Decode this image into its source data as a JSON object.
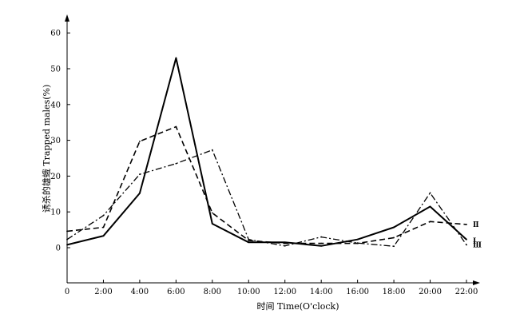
{
  "chart_data": {
    "type": "line",
    "xlabel": "时间 Time(O'clock)",
    "ylabel": "诱杀的雄蛾 Trapped males(%)",
    "x": [
      "0",
      "2:00",
      "4:00",
      "6:00",
      "8:00",
      "10:00",
      "12:00",
      "14:00",
      "16:00",
      "18:00",
      "20:00",
      "22:00"
    ],
    "xlim": [
      0,
      22
    ],
    "ylim": [
      -10,
      64
    ],
    "yticks": [
      0,
      10,
      20,
      30,
      40,
      50,
      60
    ],
    "grid": false,
    "series": [
      {
        "name": "Ⅰ",
        "style": "solid",
        "values": [
          0.8,
          3.3,
          15.2,
          53.0,
          6.7,
          1.5,
          1.5,
          0.5,
          2.3,
          5.7,
          11.5,
          2.3
        ]
      },
      {
        "name": "Ⅱ",
        "style": "dashed",
        "values": [
          4.6,
          5.7,
          29.7,
          33.8,
          9.7,
          2.0,
          1.2,
          1.2,
          1.2,
          2.8,
          7.3,
          6.5
        ]
      },
      {
        "name": "Ⅲ",
        "style": "dashdot",
        "values": [
          2.3,
          9.0,
          20.5,
          23.5,
          27.3,
          2.3,
          0.5,
          3.0,
          1.3,
          0.4,
          15.3,
          0.8
        ]
      }
    ],
    "colors": {
      "line": "#000000"
    }
  }
}
